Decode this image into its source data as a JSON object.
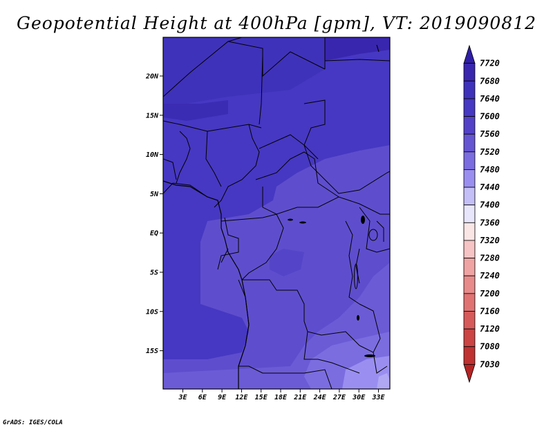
{
  "title": "Geopotential Height at 400hPa [gpm], VT: 2019090812",
  "credit": "GrADS: IGES/COLA",
  "map": {
    "lon_labels": [
      "3E",
      "6E",
      "9E",
      "12E",
      "15E",
      "18E",
      "21E",
      "24E",
      "27E",
      "30E",
      "33E"
    ],
    "lat_labels": [
      "20N",
      "15N",
      "10N",
      "5N",
      "EQ",
      "5S",
      "10S",
      "15S"
    ]
  },
  "colorbar": {
    "labels": [
      "7720",
      "7680",
      "7640",
      "7600",
      "7560",
      "7520",
      "7480",
      "7440",
      "7400",
      "7360",
      "7320",
      "7280",
      "7240",
      "7200",
      "7160",
      "7120",
      "7080",
      "7030"
    ],
    "colors": [
      "#2f1ea6",
      "#3926ae",
      "#3f32ba",
      "#4638c2",
      "#5342c8",
      "#6655d2",
      "#7b6de0",
      "#9a8ff0",
      "#c4bff6",
      "#e8e6fa",
      "#fbe6e6",
      "#f6c4c4",
      "#f0a3a3",
      "#e88a8a",
      "#e07272",
      "#d75a5a",
      "#cc4444",
      "#c03232",
      "#b52424"
    ]
  }
}
